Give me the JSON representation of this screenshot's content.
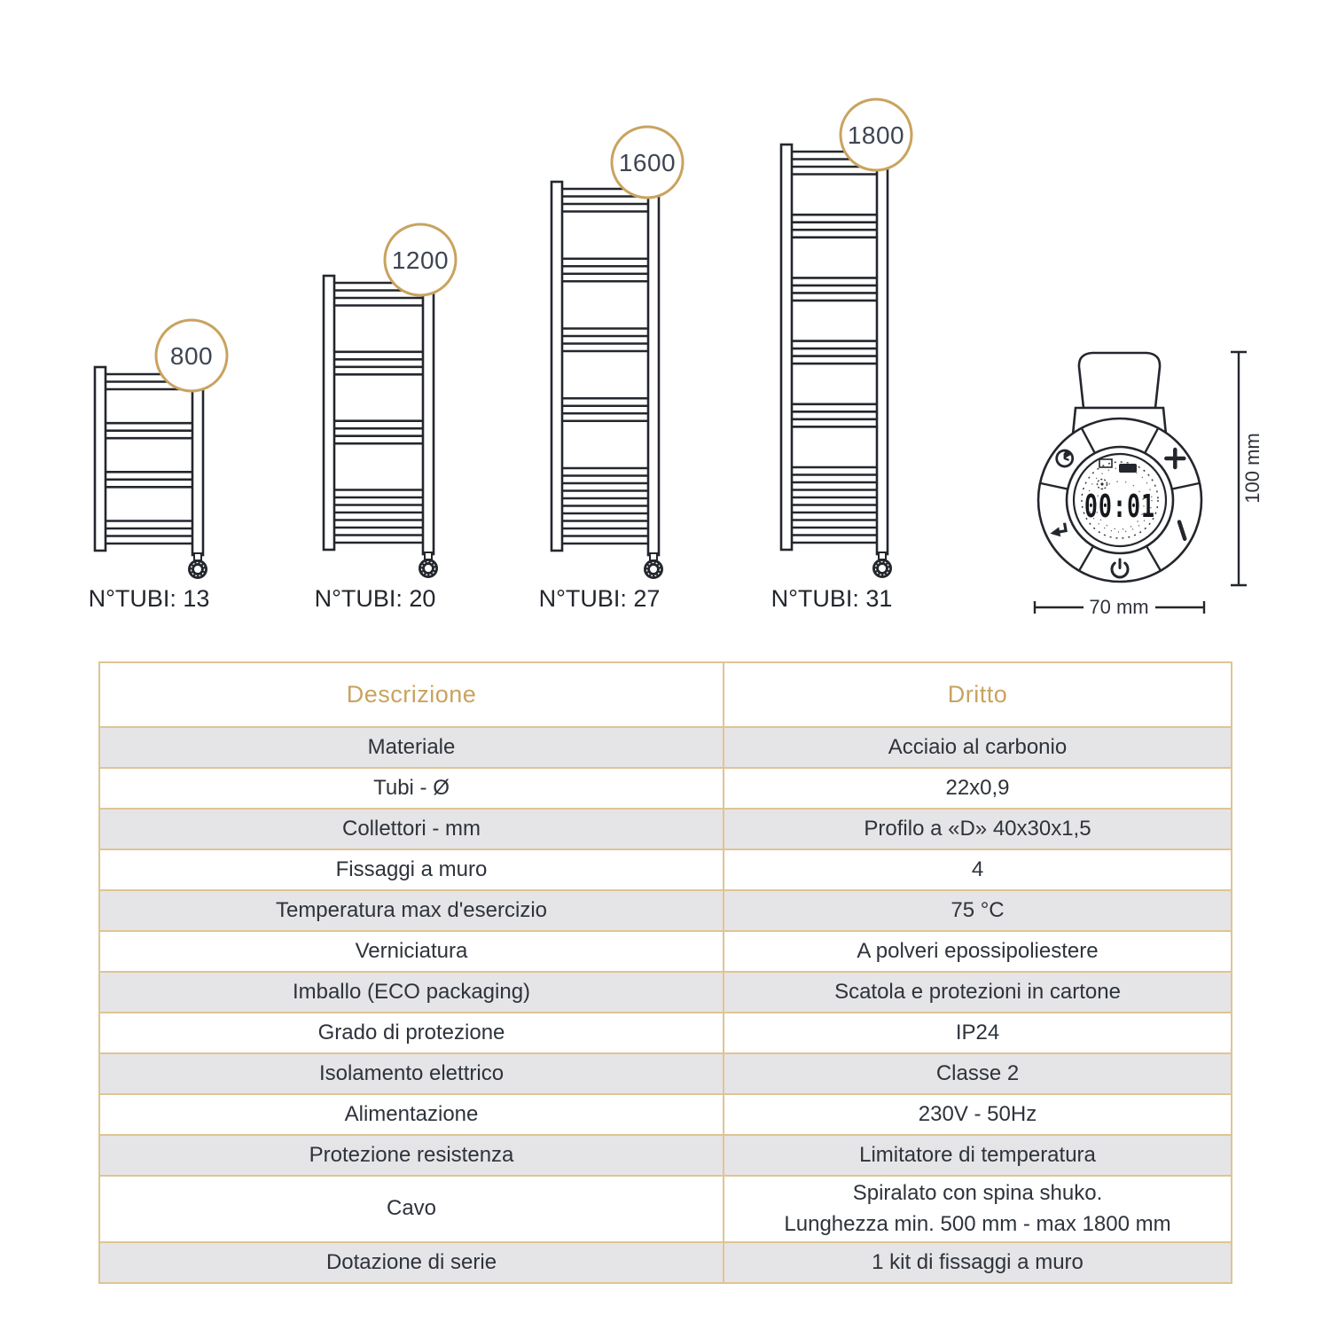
{
  "colors": {
    "accent_gold": "#C9A35F",
    "table_border": "#DFC493",
    "row_alt_gray": "#E5E5E7",
    "line_art": "#23272D",
    "badge_text": "#3E4552",
    "body_text": "#2E333B"
  },
  "diagram": {
    "radiators": [
      {
        "height_badge": "800",
        "tubi_label": "N°TUBI: 13",
        "tubes_total": 13,
        "tube_groups": [
          3,
          3,
          3,
          4
        ]
      },
      {
        "height_badge": "1200",
        "tubi_label": "N°TUBI: 20",
        "tubes_total": 20,
        "tube_groups": [
          4,
          4,
          4,
          8
        ]
      },
      {
        "height_badge": "1600",
        "tubi_label": "N°TUBI: 27",
        "tubes_total": 27,
        "tube_groups": [
          4,
          4,
          4,
          4,
          11
        ]
      },
      {
        "height_badge": "1800",
        "tubi_label": "N°TUBI: 31",
        "tubes_total": 31,
        "tube_groups": [
          4,
          4,
          4,
          4,
          4,
          11
        ]
      }
    ],
    "thermostat": {
      "display_value": "00:01",
      "height_dim_label": "100 mm",
      "width_dim_label": "70 mm",
      "button_icons": [
        "timer-icon",
        "plus-icon",
        "back-arrow-icon",
        "bar-icon",
        "power-icon"
      ]
    }
  },
  "table": {
    "headers": [
      "Descrizione",
      "Dritto"
    ],
    "rows": [
      {
        "label": "Materiale",
        "value": "Acciaio al carbonio"
      },
      {
        "label": "Tubi - Ø",
        "value": "22x0,9"
      },
      {
        "label": "Collettori - mm",
        "value": "Profilo a «D» 40x30x1,5"
      },
      {
        "label": "Fissaggi a muro",
        "value": "4"
      },
      {
        "label": "Temperatura max d'esercizio",
        "value": "75 °C"
      },
      {
        "label": "Verniciatura",
        "value": "A polveri epossipoliestere"
      },
      {
        "label": "Imballo (ECO packaging)",
        "value": "Scatola e protezioni in cartone"
      },
      {
        "label": "Grado di protezione",
        "value": "IP24"
      },
      {
        "label": "Isolamento elettrico",
        "value": "Classe 2"
      },
      {
        "label": "Alimentazione",
        "value": "230V - 50Hz"
      },
      {
        "label": "Protezione resistenza",
        "value": "Limitatore di temperatura"
      },
      {
        "label": "Cavo",
        "value": "Spiralato con spina shuko.",
        "value2": "Lunghezza min. 500 mm - max 1800 mm"
      },
      {
        "label": "Dotazione di serie",
        "value": "1 kit di fissaggi a muro"
      }
    ]
  }
}
